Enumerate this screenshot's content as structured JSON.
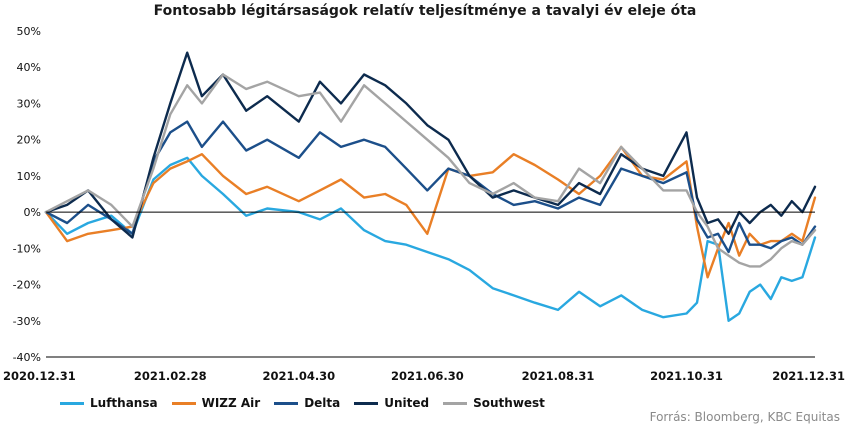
{
  "chart_data": {
    "type": "line",
    "title": "Fontosabb légitársaságok relatív teljesítménye a tavalyi év eleje óta",
    "ylim": [
      -40,
      50
    ],
    "yticks": [
      50,
      40,
      30,
      20,
      10,
      0,
      -10,
      -20,
      -30,
      -40
    ],
    "ytick_labels": [
      "50%",
      "40%",
      "30%",
      "20%",
      "10%",
      "0%",
      "-10%",
      "-20%",
      "-30%",
      "-40%"
    ],
    "xlim": [
      "2020-12-31",
      "2021-12-31"
    ],
    "xtick_labels": [
      "2020.12.31",
      "2021.02.28",
      "2021.04.30",
      "2021.06.30",
      "2021.08.31",
      "2021.10.31",
      "2021.12.31"
    ],
    "xtick_dates": [
      "2020-12-31",
      "2021-02-28",
      "2021-04-30",
      "2021-06-30",
      "2021-08-31",
      "2021-10-31",
      "2021-12-31"
    ],
    "grid": false,
    "legend_position": "bottom",
    "series": [
      {
        "name": "Lufthansa",
        "color": "#29a8e0",
        "x": [
          "2020-12-31",
          "2021-01-10",
          "2021-01-20",
          "2021-01-31",
          "2021-02-10",
          "2021-02-20",
          "2021-02-28",
          "2021-03-08",
          "2021-03-15",
          "2021-03-25",
          "2021-04-05",
          "2021-04-15",
          "2021-04-30",
          "2021-05-10",
          "2021-05-20",
          "2021-05-31",
          "2021-06-10",
          "2021-06-20",
          "2021-06-30",
          "2021-07-10",
          "2021-07-20",
          "2021-07-31",
          "2021-08-10",
          "2021-08-20",
          "2021-08-31",
          "2021-09-10",
          "2021-09-20",
          "2021-09-30",
          "2021-10-10",
          "2021-10-20",
          "2021-10-31",
          "2021-11-05",
          "2021-11-10",
          "2021-11-15",
          "2021-11-20",
          "2021-11-25",
          "2021-11-30",
          "2021-12-05",
          "2021-12-10",
          "2021-12-15",
          "2021-12-20",
          "2021-12-25",
          "2021-12-31"
        ],
        "y": [
          0,
          -6,
          -3,
          -1,
          -6,
          9,
          13,
          15,
          10,
          5,
          -1,
          1,
          0,
          -2,
          1,
          -5,
          -8,
          -9,
          -11,
          -13,
          -16,
          -21,
          -23,
          -25,
          -27,
          -22,
          -26,
          -23,
          -27,
          -29,
          -28,
          -25,
          -8,
          -9,
          -30,
          -28,
          -22,
          -20,
          -24,
          -18,
          -19,
          -18,
          -7
        ]
      },
      {
        "name": "WIZZ Air",
        "color": "#e97f26",
        "x": [
          "2020-12-31",
          "2021-01-10",
          "2021-01-20",
          "2021-01-31",
          "2021-02-10",
          "2021-02-20",
          "2021-02-28",
          "2021-03-08",
          "2021-03-15",
          "2021-03-25",
          "2021-04-05",
          "2021-04-15",
          "2021-04-30",
          "2021-05-10",
          "2021-05-20",
          "2021-05-31",
          "2021-06-10",
          "2021-06-20",
          "2021-06-30",
          "2021-07-10",
          "2021-07-20",
          "2021-07-31",
          "2021-08-10",
          "2021-08-20",
          "2021-08-31",
          "2021-09-10",
          "2021-09-20",
          "2021-09-30",
          "2021-10-10",
          "2021-10-20",
          "2021-10-31",
          "2021-11-05",
          "2021-11-10",
          "2021-11-15",
          "2021-11-20",
          "2021-11-25",
          "2021-11-30",
          "2021-12-05",
          "2021-12-10",
          "2021-12-15",
          "2021-12-20",
          "2021-12-25",
          "2021-12-31"
        ],
        "y": [
          0,
          -8,
          -6,
          -5,
          -4,
          8,
          12,
          14,
          16,
          10,
          5,
          7,
          3,
          6,
          9,
          4,
          5,
          2,
          -6,
          12,
          10,
          11,
          16,
          13,
          9,
          5,
          10,
          18,
          10,
          9,
          14,
          -4,
          -18,
          -10,
          -3,
          -12,
          -6,
          -9,
          -8,
          -8,
          -6,
          -8,
          4
        ]
      },
      {
        "name": "Delta",
        "color": "#1c4f8a",
        "x": [
          "2020-12-31",
          "2021-01-10",
          "2021-01-20",
          "2021-01-31",
          "2021-02-10",
          "2021-02-20",
          "2021-02-28",
          "2021-03-08",
          "2021-03-15",
          "2021-03-25",
          "2021-04-05",
          "2021-04-15",
          "2021-04-30",
          "2021-05-10",
          "2021-05-20",
          "2021-05-31",
          "2021-06-10",
          "2021-06-20",
          "2021-06-30",
          "2021-07-10",
          "2021-07-20",
          "2021-07-31",
          "2021-08-10",
          "2021-08-20",
          "2021-08-31",
          "2021-09-10",
          "2021-09-20",
          "2021-09-30",
          "2021-10-10",
          "2021-10-20",
          "2021-10-31",
          "2021-11-05",
          "2021-11-10",
          "2021-11-15",
          "2021-11-20",
          "2021-11-25",
          "2021-11-30",
          "2021-12-05",
          "2021-12-10",
          "2021-12-15",
          "2021-12-20",
          "2021-12-25",
          "2021-12-31"
        ],
        "y": [
          0,
          -3,
          2,
          -2,
          -6,
          14,
          22,
          25,
          18,
          25,
          17,
          20,
          15,
          22,
          18,
          20,
          18,
          12,
          6,
          12,
          10,
          5,
          2,
          3,
          1,
          4,
          2,
          12,
          10,
          8,
          11,
          -2,
          -7,
          -6,
          -11,
          -3,
          -9,
          -9,
          -10,
          -8,
          -7,
          -9,
          -4
        ]
      },
      {
        "name": "United",
        "color": "#0d2b4e",
        "x": [
          "2020-12-31",
          "2021-01-10",
          "2021-01-20",
          "2021-01-31",
          "2021-02-10",
          "2021-02-20",
          "2021-02-28",
          "2021-03-08",
          "2021-03-15",
          "2021-03-25",
          "2021-04-05",
          "2021-04-15",
          "2021-04-30",
          "2021-05-10",
          "2021-05-20",
          "2021-05-31",
          "2021-06-10",
          "2021-06-20",
          "2021-06-30",
          "2021-07-10",
          "2021-07-20",
          "2021-07-31",
          "2021-08-10",
          "2021-08-20",
          "2021-08-31",
          "2021-09-10",
          "2021-09-20",
          "2021-09-30",
          "2021-10-10",
          "2021-10-20",
          "2021-10-31",
          "2021-11-05",
          "2021-11-10",
          "2021-11-15",
          "2021-11-20",
          "2021-11-25",
          "2021-11-30",
          "2021-12-05",
          "2021-12-10",
          "2021-12-15",
          "2021-12-20",
          "2021-12-25",
          "2021-12-31"
        ],
        "y": [
          0,
          2,
          6,
          -2,
          -7,
          15,
          30,
          44,
          32,
          38,
          28,
          32,
          25,
          36,
          30,
          38,
          35,
          30,
          24,
          20,
          10,
          4,
          6,
          4,
          2,
          8,
          5,
          16,
          12,
          10,
          22,
          4,
          -3,
          -2,
          -6,
          0,
          -3,
          0,
          2,
          -1,
          3,
          0,
          7
        ]
      },
      {
        "name": "Southwest",
        "color": "#a4a4a4",
        "x": [
          "2020-12-31",
          "2021-01-10",
          "2021-01-20",
          "2021-01-31",
          "2021-02-10",
          "2021-02-20",
          "2021-02-28",
          "2021-03-08",
          "2021-03-15",
          "2021-03-25",
          "2021-04-05",
          "2021-04-15",
          "2021-04-30",
          "2021-05-10",
          "2021-05-20",
          "2021-05-31",
          "2021-06-10",
          "2021-06-20",
          "2021-06-30",
          "2021-07-10",
          "2021-07-20",
          "2021-07-31",
          "2021-08-10",
          "2021-08-20",
          "2021-08-31",
          "2021-09-10",
          "2021-09-20",
          "2021-09-30",
          "2021-10-10",
          "2021-10-20",
          "2021-10-31",
          "2021-11-05",
          "2021-11-10",
          "2021-11-15",
          "2021-11-20",
          "2021-11-25",
          "2021-11-30",
          "2021-12-05",
          "2021-12-10",
          "2021-12-15",
          "2021-12-20",
          "2021-12-25",
          "2021-12-31"
        ],
        "y": [
          0,
          3,
          6,
          2,
          -4,
          12,
          27,
          35,
          30,
          38,
          34,
          36,
          32,
          33,
          25,
          35,
          30,
          25,
          20,
          15,
          8,
          5,
          8,
          4,
          3,
          12,
          8,
          18,
          12,
          6,
          6,
          0,
          -4,
          -10,
          -12,
          -14,
          -15,
          -15,
          -13,
          -10,
          -8,
          -9,
          -5
        ]
      }
    ]
  },
  "source_label": "Forrás: Bloomberg, KBC Equitas"
}
